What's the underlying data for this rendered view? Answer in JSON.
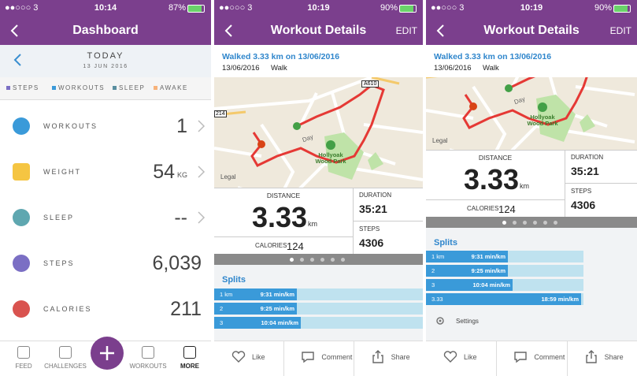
{
  "dashboard": {
    "status": {
      "carrier": "●●○○○ 3",
      "time": "10:14",
      "battery": "87%"
    },
    "title": "Dashboard",
    "day": "TODAY",
    "date": "13 JUN 2016",
    "legend": [
      "STEPS",
      "WORKOUTS",
      "SLEEP",
      "AWAKE"
    ],
    "rows": [
      {
        "label": "WORKOUTS",
        "value": "1"
      },
      {
        "label": "WEIGHT",
        "value": "54",
        "unit": "KG"
      },
      {
        "label": "SLEEP",
        "value": "--"
      },
      {
        "label": "STEPS",
        "value": "6,039"
      },
      {
        "label": "CALORIES",
        "value": "211"
      }
    ],
    "tabs": [
      "FEED",
      "CHALLENGES",
      "WORKOUTS",
      "MORE"
    ]
  },
  "workout_screens": [
    {
      "status": {
        "carrier": "●●○○○ 3",
        "time": "10:19",
        "battery": "90%"
      },
      "title": "Workout Details",
      "edit": "EDIT",
      "summary": "Walked 3.33 km on 13/06/2016",
      "date": "13/06/2016",
      "activity": "Walk",
      "map_labels": [
        "A610",
        "214",
        "Day",
        "Hollyoak Wood Park",
        "Legal"
      ],
      "stats": {
        "distance_label": "DISTANCE",
        "distance": "3.33",
        "distance_unit": "km",
        "calories_label": "CALORIES",
        "calories": "124",
        "duration_label": "DURATION",
        "duration": "35:21",
        "steps_label": "STEPS",
        "steps": "4306"
      },
      "splits_title": "Splits",
      "splits": [
        {
          "label": "1 km",
          "pace": "9:31 min/km"
        },
        {
          "label": "2",
          "pace": "9:25 min/km"
        },
        {
          "label": "3",
          "pace": "10:04 min/km"
        }
      ],
      "actions": [
        "Like",
        "Comment",
        "Share"
      ]
    },
    {
      "status": {
        "carrier": "●●○○○ 3",
        "time": "10:19",
        "battery": "90%"
      },
      "title": "Workout Details",
      "edit": "EDIT",
      "summary": "Walked 3.33 km on 13/06/2016",
      "date": "13/06/2016",
      "activity": "Walk",
      "map_labels": [
        "Day",
        "Hollyoak Wood Park",
        "Legal"
      ],
      "stats": {
        "distance_label": "DISTANCE",
        "distance": "3.33",
        "distance_unit": "km",
        "calories_label": "CALORIES",
        "calories": "124",
        "duration_label": "DURATION",
        "duration": "35:21",
        "steps_label": "STEPS",
        "steps": "4306"
      },
      "splits_title": "Splits",
      "splits": [
        {
          "label": "1 km",
          "pace": "9:31 min/km"
        },
        {
          "label": "2",
          "pace": "9:25 min/km"
        },
        {
          "label": "3",
          "pace": "10:04 min/km"
        },
        {
          "label": "3.33",
          "pace": "18:59 min/km"
        }
      ],
      "settings": "Settings",
      "actions": [
        "Like",
        "Comment",
        "Share"
      ]
    }
  ]
}
